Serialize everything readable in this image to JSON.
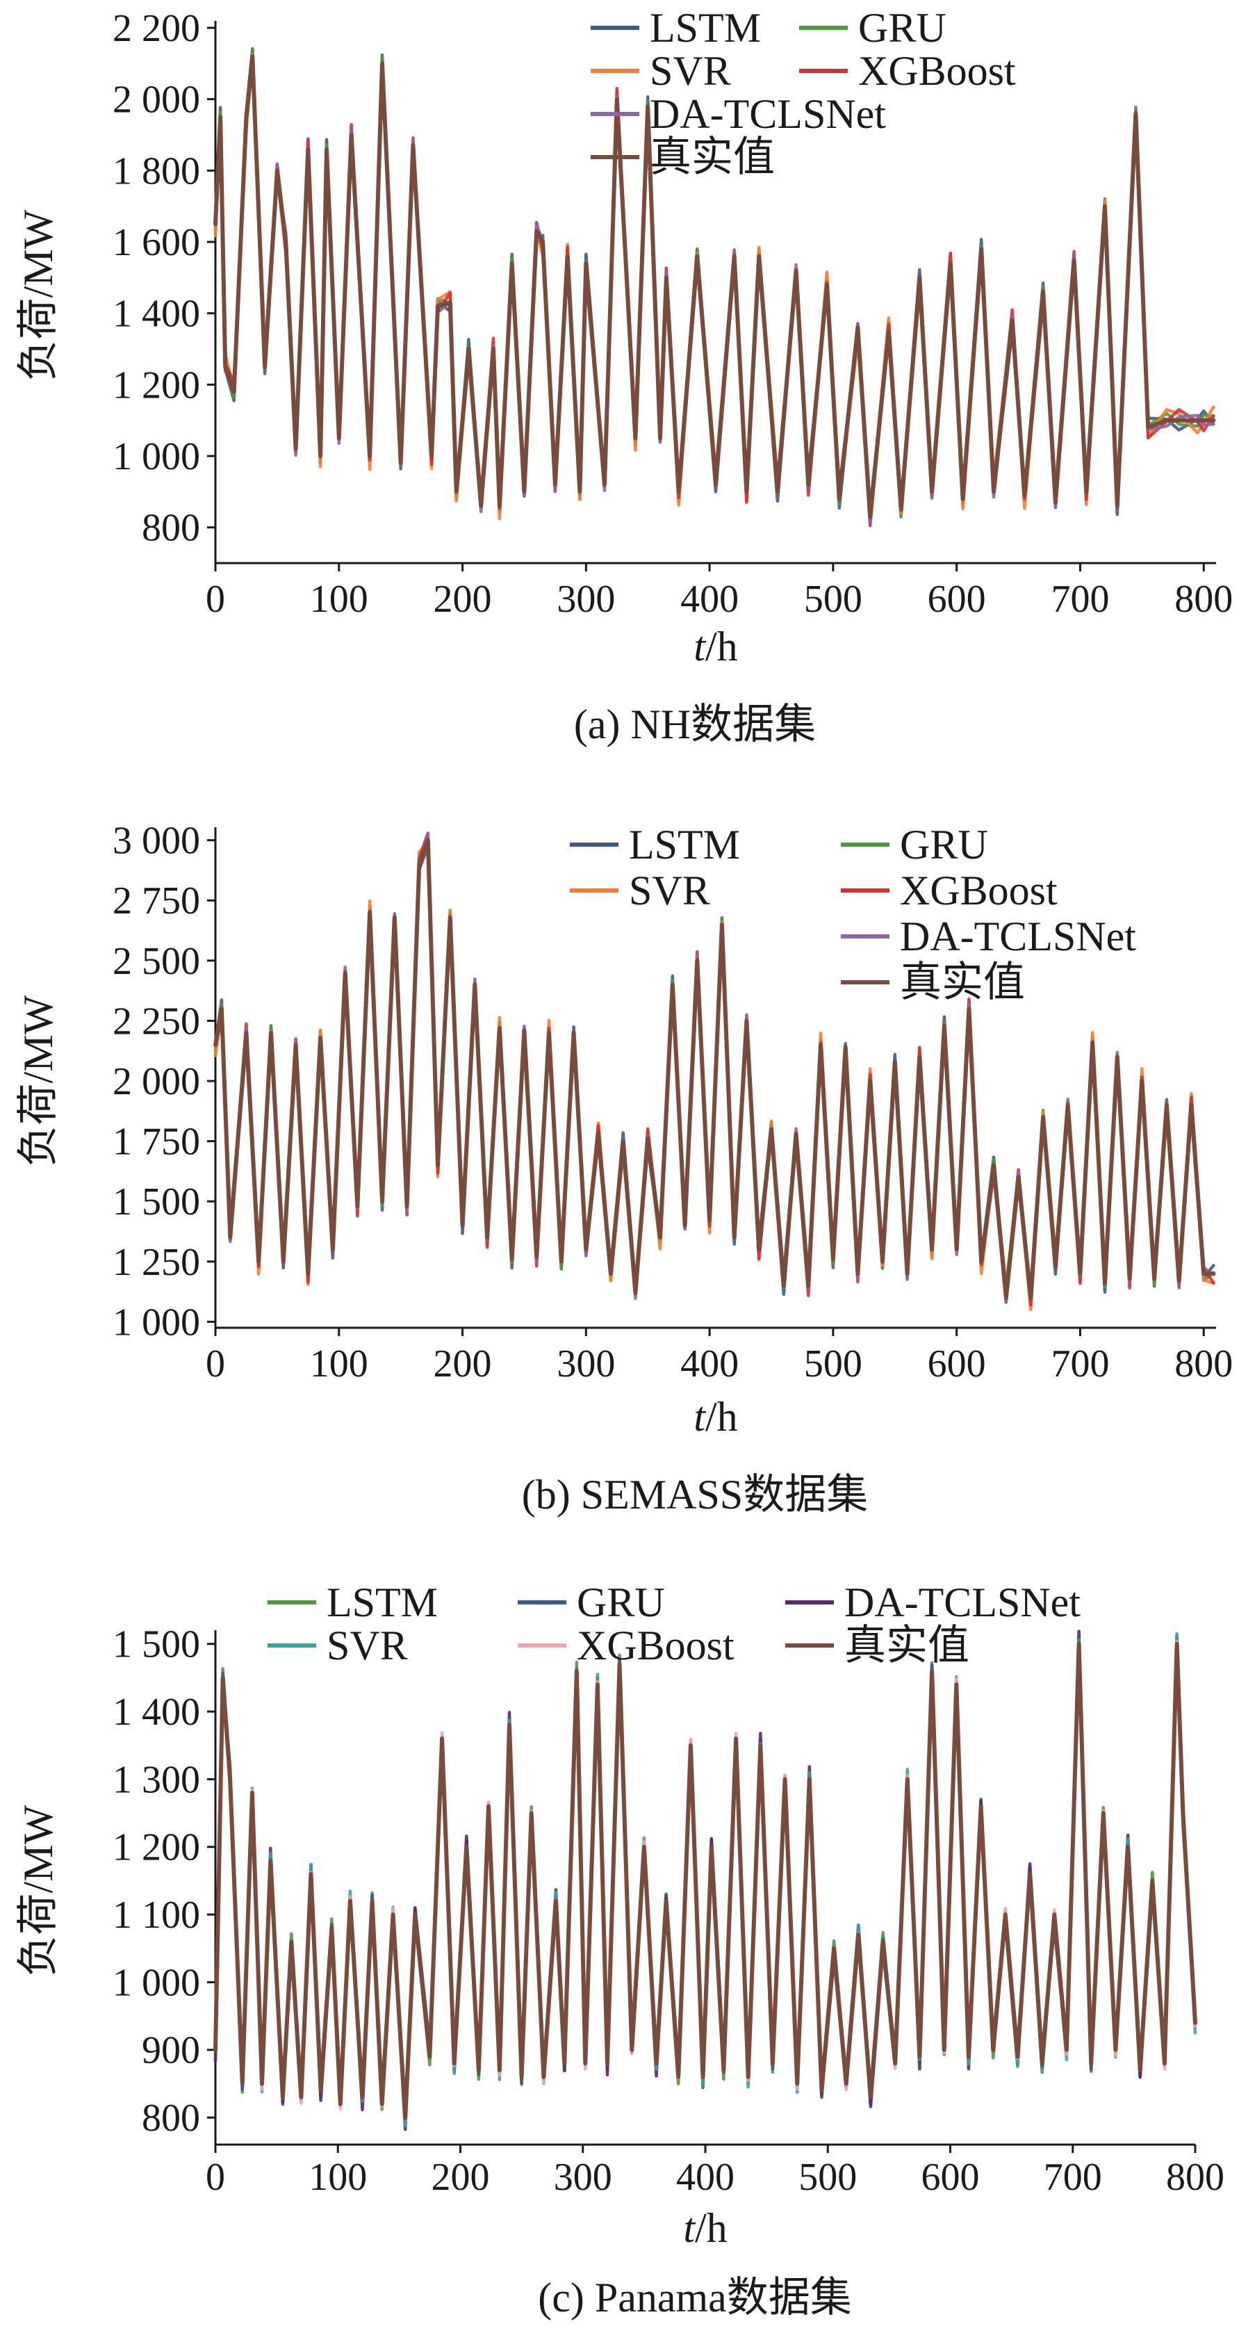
{
  "chart_data": [
    {
      "type": "line",
      "caption": "(a) NH数据集",
      "xlabel": "t/h",
      "xlabel_italic": "t",
      "xlabel_rest": "/h",
      "ylabel": "负荷/MW",
      "xlim": [
        0,
        810
      ],
      "ylim": [
        700,
        2200
      ],
      "xticks": [
        0,
        100,
        200,
        300,
        400,
        500,
        600,
        700,
        800
      ],
      "xtick_labels": [
        "0",
        "100",
        "200",
        "300",
        "400",
        "500",
        "600",
        "700",
        "800"
      ],
      "yticks": [
        800,
        1000,
        1200,
        1400,
        1600,
        1800,
        2000,
        2200
      ],
      "ytick_labels": [
        "800",
        "1 000",
        "1 200",
        "1 400",
        "1 600",
        "1 800",
        "2 000",
        "2 200"
      ],
      "legend_position": "top-right",
      "legend_columns": 2,
      "series": [
        {
          "name": "LSTM",
          "color": "#3d5a8a"
        },
        {
          "name": "GRU",
          "color": "#4d9a3a"
        },
        {
          "name": "SVR",
          "color": "#f47c30"
        },
        {
          "name": "XGBoost",
          "color": "#d62f2f"
        },
        {
          "name": "DA-TCLSNet",
          "color": "#8d63ab"
        },
        {
          "name": "真实值",
          "color": "#7a4a3a"
        }
      ],
      "x": [
        0,
        4,
        8,
        15,
        25,
        30,
        40,
        50,
        57,
        65,
        75,
        85,
        90,
        100,
        110,
        125,
        135,
        150,
        160,
        175,
        180,
        190,
        195,
        205,
        215,
        225,
        230,
        240,
        250,
        260,
        265,
        275,
        285,
        295,
        300,
        315,
        325,
        340,
        350,
        360,
        365,
        375,
        390,
        405,
        420,
        430,
        440,
        455,
        470,
        480,
        495,
        505,
        520,
        530,
        545,
        555,
        570,
        580,
        595,
        605,
        620,
        630,
        645,
        655,
        670,
        680,
        695,
        705,
        720,
        730,
        745,
        755,
        770,
        780,
        795,
        800,
        808
      ],
      "actual": [
        1650,
        1950,
        1250,
        1180,
        1950,
        2120,
        1250,
        1800,
        1600,
        1020,
        1860,
        1000,
        1860,
        1050,
        1900,
        1000,
        2100,
        980,
        1870,
        1000,
        1420,
        1430,
        900,
        1300,
        860,
        1300,
        860,
        1540,
        900,
        1630,
        1600,
        920,
        1560,
        900,
        1540,
        920,
        2000,
        1050,
        1980,
        1050,
        1500,
        900,
        1560,
        920,
        1560,
        900,
        1560,
        900,
        1520,
        920,
        1480,
        880,
        1360,
        830,
        1350,
        850,
        1500,
        900,
        1540,
        880,
        1580,
        900,
        1380,
        890,
        1460,
        870,
        1550,
        900,
        1700,
        860,
        1960,
        1080,
        1100,
        1100,
        1100,
        1100,
        1100
      ],
      "lines_visible": 6
    },
    {
      "type": "line",
      "caption": "(b) SEMASS数据集",
      "xlabel": "t/h",
      "xlabel_italic": "t",
      "xlabel_rest": "/h",
      "ylabel": "负荷/MW",
      "xlim": [
        0,
        810
      ],
      "ylim": [
        975,
        3025
      ],
      "xticks": [
        0,
        100,
        200,
        300,
        400,
        500,
        600,
        700,
        800
      ],
      "xtick_labels": [
        "0",
        "100",
        "200",
        "300",
        "400",
        "500",
        "600",
        "700",
        "800"
      ],
      "yticks": [
        1000,
        1250,
        1500,
        1750,
        2000,
        2250,
        2500,
        2750,
        3000
      ],
      "ytick_labels": [
        "1 000",
        "1 250",
        "1 500",
        "1 750",
        "2 000",
        "2 250",
        "2 500",
        "2 750",
        "3 000"
      ],
      "legend_position": "top-right",
      "legend_columns": 2,
      "series": [
        {
          "name": "LSTM",
          "color": "#3d5a8a"
        },
        {
          "name": "GRU",
          "color": "#4d9a3a"
        },
        {
          "name": "SVR",
          "color": "#f47c30"
        },
        {
          "name": "XGBoost",
          "color": "#d62f2f"
        },
        {
          "name": "DA-TCLSNet",
          "color": "#8d63ab"
        },
        {
          "name": "真实值",
          "color": "#7a4a3a"
        }
      ],
      "x": [
        0,
        5,
        12,
        25,
        35,
        45,
        55,
        65,
        75,
        85,
        95,
        105,
        115,
        125,
        135,
        145,
        155,
        165,
        172,
        180,
        190,
        200,
        210,
        220,
        230,
        240,
        250,
        260,
        270,
        280,
        290,
        300,
        310,
        320,
        330,
        340,
        350,
        360,
        370,
        380,
        390,
        400,
        410,
        420,
        430,
        440,
        450,
        460,
        470,
        480,
        490,
        500,
        510,
        520,
        530,
        540,
        550,
        560,
        570,
        580,
        590,
        600,
        610,
        620,
        630,
        640,
        650,
        660,
        670,
        680,
        690,
        700,
        710,
        720,
        730,
        740,
        750,
        760,
        770,
        780,
        790,
        800,
        808
      ],
      "actual": [
        2150,
        2300,
        1350,
        2200,
        1250,
        2200,
        1250,
        2150,
        1200,
        2180,
        1300,
        2450,
        1480,
        2700,
        1500,
        2680,
        1480,
        2900,
        3000,
        1650,
        2680,
        1400,
        2400,
        1350,
        2220,
        1260,
        2210,
        1270,
        2200,
        1250,
        2200,
        1300,
        1780,
        1200,
        1750,
        1120,
        1760,
        1350,
        2400,
        1400,
        2500,
        1420,
        2650,
        1350,
        2250,
        1300,
        1800,
        1150,
        1780,
        1150,
        2150,
        1260,
        2140,
        1200,
        2000,
        1250,
        2080,
        1200,
        2100,
        1300,
        2230,
        1300,
        2300,
        1250,
        1650,
        1100,
        1600,
        1100,
        1850,
        1230,
        1900,
        1200,
        2160,
        1160,
        2100,
        1180,
        2000,
        1180,
        1900,
        1170,
        1900,
        1200,
        1200
      ],
      "lines_visible": 6
    },
    {
      "type": "line",
      "caption": "(c) Panama数据集",
      "xlabel": "t/h",
      "xlabel_italic": "t",
      "xlabel_rest": "/h",
      "ylabel": "负荷/MW",
      "xlim": [
        0,
        800
      ],
      "ylim": [
        760,
        1510
      ],
      "xticks": [
        0,
        100,
        200,
        300,
        400,
        500,
        600,
        700,
        800
      ],
      "xtick_labels": [
        "0",
        "100",
        "200",
        "300",
        "400",
        "500",
        "600",
        "700",
        "800"
      ],
      "yticks": [
        800,
        900,
        1000,
        1100,
        1200,
        1300,
        1400,
        1500
      ],
      "ytick_labels": [
        "800",
        "900",
        "1 000",
        "1 100",
        "1 200",
        "1 300",
        "1 400",
        "1 500"
      ],
      "legend_position": "top-right",
      "legend_columns": 3,
      "series": [
        {
          "name": "LSTM",
          "color": "#4d9a3a"
        },
        {
          "name": "GRU",
          "color": "#3d5a8a"
        },
        {
          "name": "DA-TCLSNet",
          "color": "#5a2a6a"
        },
        {
          "name": "SVR",
          "color": "#3aa3a3"
        },
        {
          "name": "XGBoost",
          "color": "#f5a3b0"
        },
        {
          "name": "真实值",
          "color": "#7a4a3a"
        }
      ],
      "x": [
        0,
        6,
        12,
        22,
        30,
        38,
        45,
        55,
        62,
        70,
        78,
        86,
        95,
        102,
        110,
        120,
        128,
        136,
        145,
        155,
        163,
        175,
        185,
        195,
        205,
        215,
        223,
        232,
        240,
        250,
        258,
        268,
        278,
        285,
        295,
        302,
        312,
        320,
        330,
        340,
        350,
        360,
        368,
        378,
        388,
        398,
        405,
        415,
        425,
        435,
        445,
        455,
        465,
        475,
        485,
        495,
        505,
        515,
        525,
        535,
        545,
        555,
        565,
        575,
        585,
        595,
        605,
        615,
        625,
        635,
        645,
        655,
        665,
        675,
        685,
        695,
        705,
        715,
        725,
        735,
        745,
        755,
        765,
        775,
        785,
        790,
        800
      ],
      "actual": [
        900,
        1450,
        1300,
        850,
        1280,
        850,
        1180,
        830,
        1060,
        830,
        1160,
        840,
        1080,
        820,
        1120,
        830,
        1120,
        820,
        1100,
        800,
        1100,
        890,
        1360,
        880,
        1200,
        870,
        1260,
        870,
        1380,
        860,
        1250,
        860,
        1120,
        880,
        1460,
        880,
        1440,
        880,
        1470,
        900,
        1200,
        880,
        1120,
        860,
        1350,
        860,
        1200,
        870,
        1360,
        860,
        1350,
        880,
        1300,
        850,
        1300,
        840,
        1050,
        850,
        1070,
        830,
        1060,
        880,
        1300,
        890,
        1460,
        900,
        1440,
        890,
        1260,
        900,
        1100,
        890,
        1160,
        880,
        1100,
        900,
        1500,
        880,
        1250,
        900,
        1200,
        870,
        1150,
        880,
        1500,
        1250,
        940
      ],
      "lines_visible": 6
    }
  ]
}
